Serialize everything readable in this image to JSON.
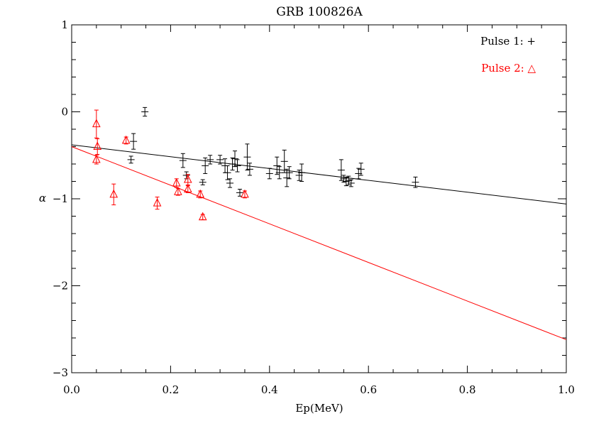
{
  "chart_data": {
    "type": "scatter",
    "title": "GRB 100826A",
    "xlabel": "Ep(MeV)",
    "ylabel": "α",
    "xlim": [
      0.0,
      1.0
    ],
    "ylim": [
      -3.0,
      1.0
    ],
    "x_ticks": [
      "0.0",
      "0.2",
      "0.4",
      "0.6",
      "0.8",
      "1.0"
    ],
    "y_ticks": [
      "1",
      "0",
      "−1",
      "−2",
      "−3"
    ],
    "grid": false,
    "legend_position": "top-right",
    "series": [
      {
        "name": "Pulse 1: +",
        "color": "#000000",
        "marker": "plus",
        "points": [
          {
            "x": 0.12,
            "y": -0.55,
            "err": 0.04
          },
          {
            "x": 0.125,
            "y": -0.34,
            "err": 0.09
          },
          {
            "x": 0.148,
            "y": 0.0,
            "err": 0.05
          },
          {
            "x": 0.225,
            "y": -0.56,
            "err": 0.08
          },
          {
            "x": 0.232,
            "y": -0.73,
            "err": 0.04
          },
          {
            "x": 0.265,
            "y": -0.81,
            "err": 0.03
          },
          {
            "x": 0.27,
            "y": -0.62,
            "err": 0.09
          },
          {
            "x": 0.28,
            "y": -0.55,
            "err": 0.05
          },
          {
            "x": 0.3,
            "y": -0.55,
            "err": 0.05
          },
          {
            "x": 0.31,
            "y": -0.62,
            "err": 0.08
          },
          {
            "x": 0.315,
            "y": -0.7,
            "err": 0.08
          },
          {
            "x": 0.32,
            "y": -0.82,
            "err": 0.05
          },
          {
            "x": 0.325,
            "y": -0.6,
            "err": 0.07
          },
          {
            "x": 0.33,
            "y": -0.54,
            "err": 0.09
          },
          {
            "x": 0.335,
            "y": -0.62,
            "err": 0.07
          },
          {
            "x": 0.34,
            "y": -0.93,
            "err": 0.04
          },
          {
            "x": 0.355,
            "y": -0.52,
            "err": 0.15
          },
          {
            "x": 0.36,
            "y": -0.66,
            "err": 0.07
          },
          {
            "x": 0.4,
            "y": -0.71,
            "err": 0.06
          },
          {
            "x": 0.415,
            "y": -0.62,
            "err": 0.1
          },
          {
            "x": 0.42,
            "y": -0.7,
            "err": 0.07
          },
          {
            "x": 0.43,
            "y": -0.57,
            "err": 0.13
          },
          {
            "x": 0.435,
            "y": -0.76,
            "err": 0.1
          },
          {
            "x": 0.44,
            "y": -0.7,
            "err": 0.07
          },
          {
            "x": 0.46,
            "y": -0.73,
            "err": 0.06
          },
          {
            "x": 0.465,
            "y": -0.7,
            "err": 0.1
          },
          {
            "x": 0.545,
            "y": -0.67,
            "err": 0.12
          },
          {
            "x": 0.55,
            "y": -0.77,
            "err": 0.04
          },
          {
            "x": 0.555,
            "y": -0.8,
            "err": 0.05
          },
          {
            "x": 0.56,
            "y": -0.79,
            "err": 0.05
          },
          {
            "x": 0.565,
            "y": -0.82,
            "err": 0.04
          },
          {
            "x": 0.58,
            "y": -0.71,
            "err": 0.06
          },
          {
            "x": 0.585,
            "y": -0.66,
            "err": 0.07
          },
          {
            "x": 0.695,
            "y": -0.81,
            "err": 0.06
          }
        ],
        "fit": {
          "x": [
            0.0,
            1.0
          ],
          "y": [
            -0.38,
            -1.06
          ]
        }
      },
      {
        "name": "Pulse 2: △",
        "color": "#ff0000",
        "marker": "triangle",
        "points": [
          {
            "x": 0.05,
            "y": -0.14,
            "err": 0.16
          },
          {
            "x": 0.052,
            "y": -0.4,
            "err": 0.09
          },
          {
            "x": 0.05,
            "y": -0.55,
            "err": 0.05
          },
          {
            "x": 0.085,
            "y": -0.95,
            "err": 0.12
          },
          {
            "x": 0.11,
            "y": -0.33,
            "err": 0.04
          },
          {
            "x": 0.173,
            "y": -1.05,
            "err": 0.07
          },
          {
            "x": 0.212,
            "y": -0.82,
            "err": 0.05
          },
          {
            "x": 0.215,
            "y": -0.92,
            "err": 0.04
          },
          {
            "x": 0.235,
            "y": -0.78,
            "err": 0.06
          },
          {
            "x": 0.235,
            "y": -0.89,
            "err": 0.04
          },
          {
            "x": 0.26,
            "y": -0.95,
            "err": 0.04
          },
          {
            "x": 0.265,
            "y": -1.21,
            "err": 0.03
          },
          {
            "x": 0.35,
            "y": -0.95,
            "err": 0.04
          }
        ],
        "fit": {
          "x": [
            0.0,
            1.0
          ],
          "y": [
            -0.4,
            -2.62
          ]
        }
      }
    ]
  }
}
